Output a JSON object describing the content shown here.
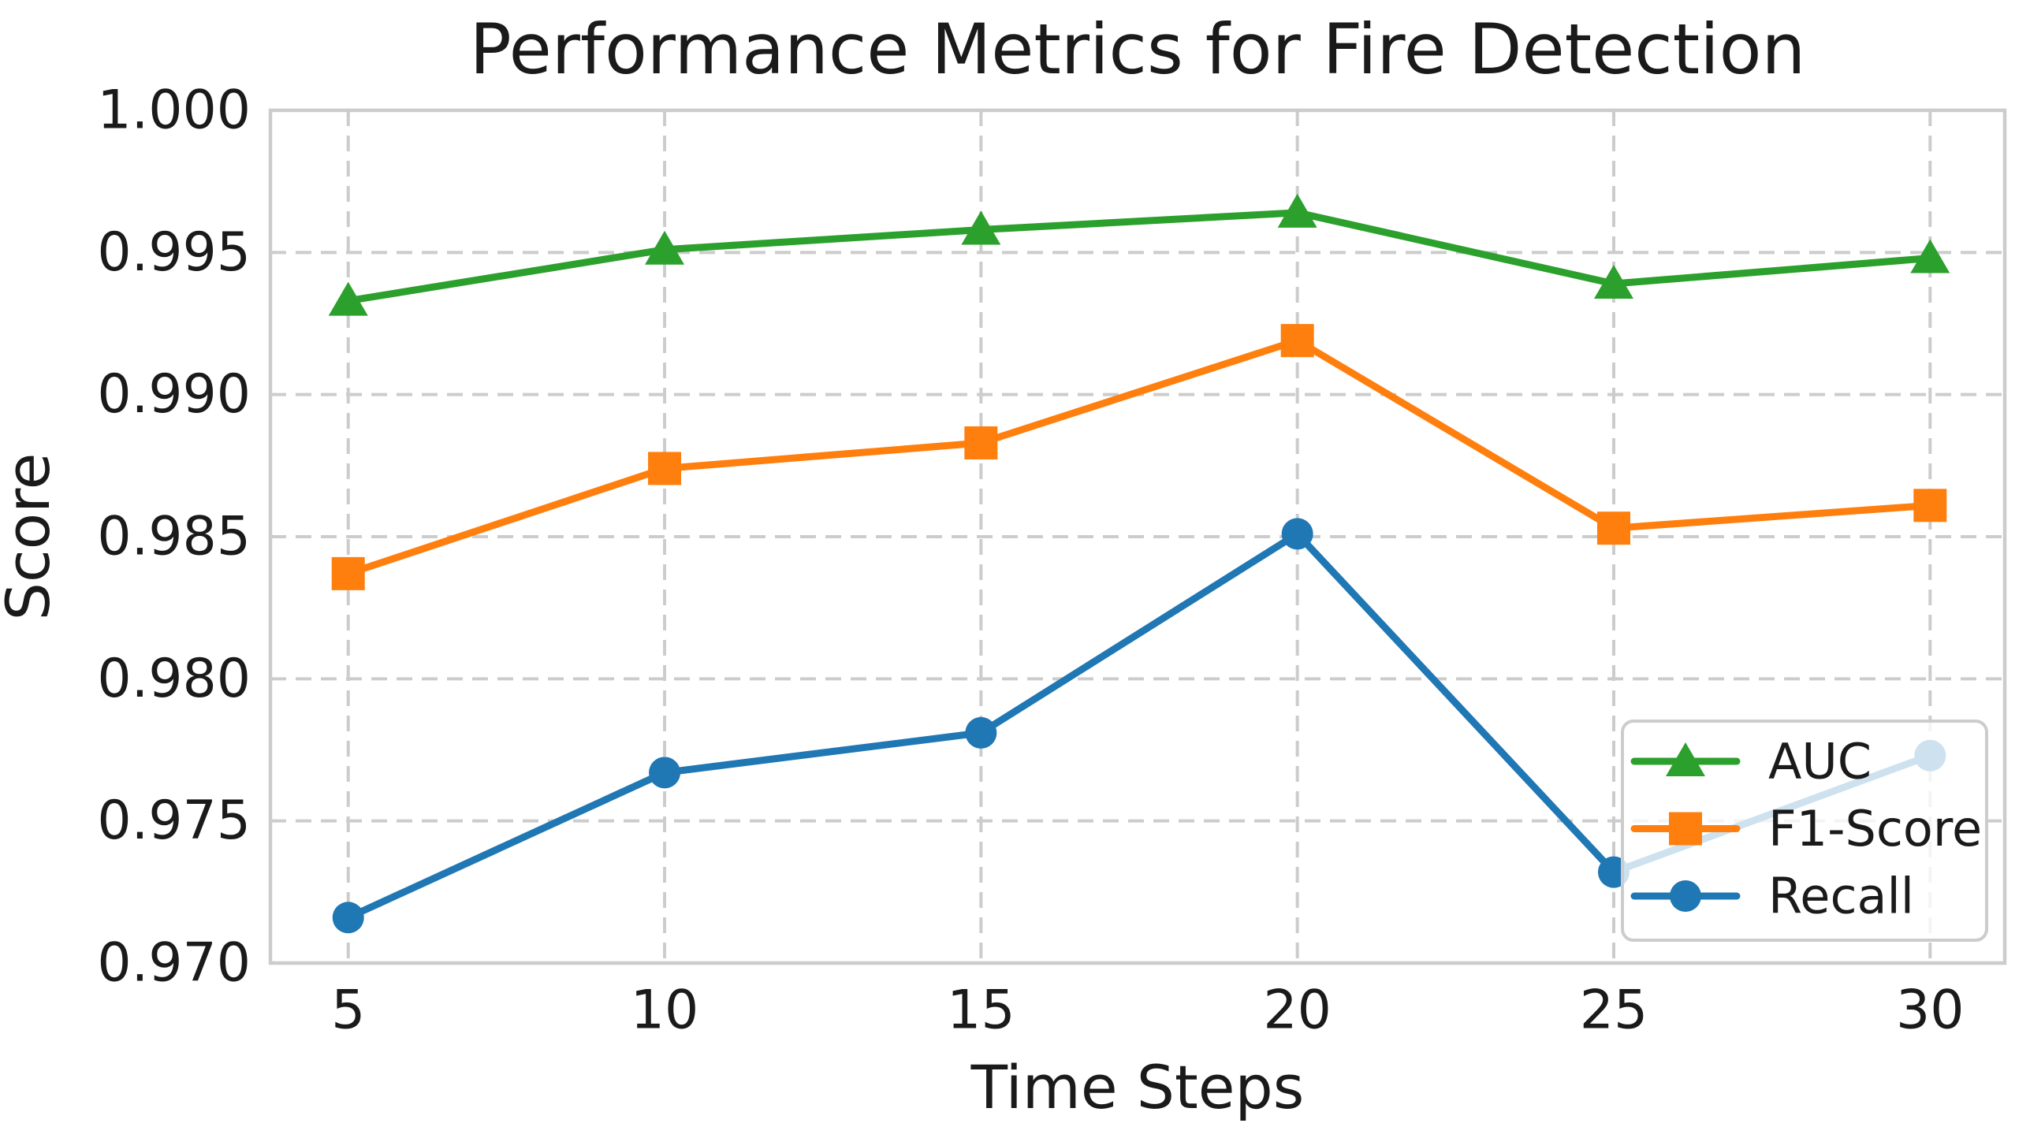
{
  "figure": {
    "background": "#ffffff",
    "text_color": "#1a1a1a",
    "grid_color": "#cccccc",
    "spine_color": "#cccccc"
  },
  "chart_data": {
    "type": "line",
    "title": "Performance Metrics for Fire Detection",
    "xlabel": "Time Steps",
    "ylabel": "Score",
    "x": [
      5,
      10,
      15,
      20,
      25,
      30
    ],
    "xticks": [
      5,
      10,
      15,
      20,
      25,
      30
    ],
    "yticks": [
      0.97,
      0.975,
      0.98,
      0.985,
      0.99,
      0.995,
      1.0
    ],
    "ytick_labels": [
      "0.970",
      "0.975",
      "0.980",
      "0.985",
      "0.990",
      "0.995",
      "1.000"
    ],
    "xlim": [
      3.77,
      31.18
    ],
    "ylim": [
      0.97,
      1.0
    ],
    "grid": true,
    "grid_style": "dashed",
    "legend_position": "lower right",
    "series": [
      {
        "name": "AUC",
        "color": "#2ca02c",
        "marker": "triangle",
        "values": [
          0.9933,
          0.9951,
          0.9958,
          0.9964,
          0.9939,
          0.9948
        ]
      },
      {
        "name": "F1-Score",
        "color": "#ff7f0e",
        "marker": "square",
        "values": [
          0.9837,
          0.9874,
          0.9883,
          0.9919,
          0.9853,
          0.9861
        ]
      },
      {
        "name": "Recall",
        "color": "#1f77b4",
        "marker": "circle",
        "values": [
          0.9716,
          0.9767,
          0.9781,
          0.9851,
          0.9732,
          0.9773
        ]
      }
    ]
  }
}
